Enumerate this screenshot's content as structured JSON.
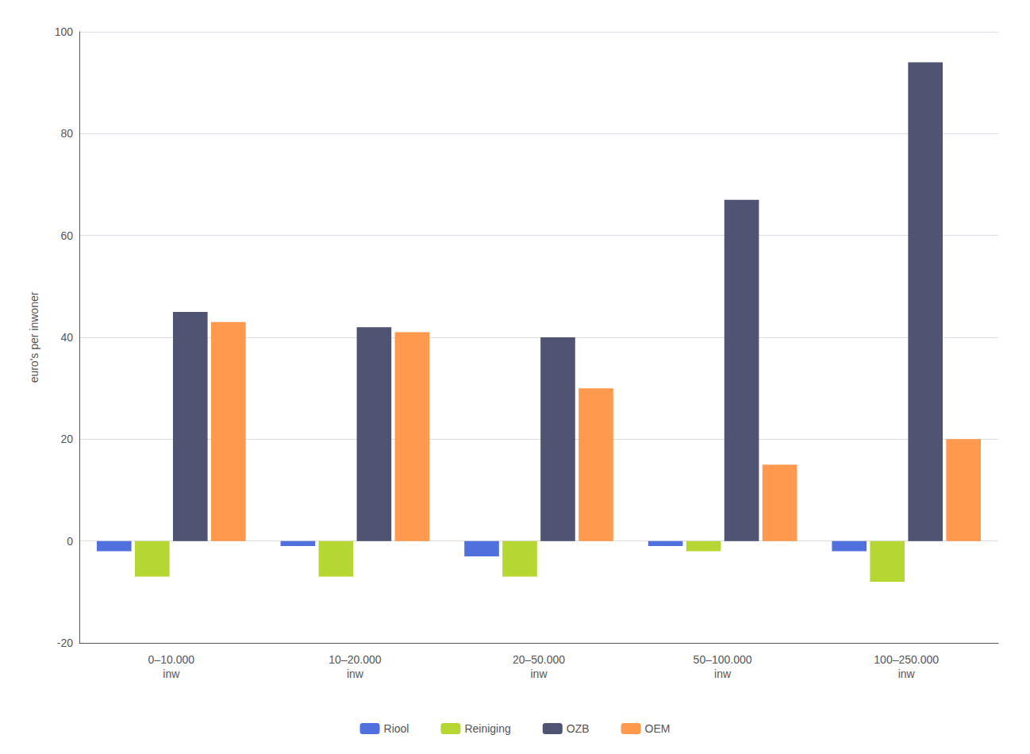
{
  "chart_data": {
    "type": "bar",
    "categories": [
      "0–10.000\ninw",
      "10–20.000\ninw",
      "20–50.000\ninw",
      "50–100.000\ninw",
      "100–250.000\ninw"
    ],
    "series": [
      {
        "name": "Riool",
        "values": [
          -2,
          -1,
          -3,
          -1,
          -2
        ]
      },
      {
        "name": "Reiniging",
        "values": [
          -7,
          -7,
          -7,
          -2,
          -8
        ]
      },
      {
        "name": "OZB",
        "values": [
          45,
          42,
          40,
          67,
          94
        ]
      },
      {
        "name": "OEM",
        "values": [
          43,
          41,
          30,
          15,
          20
        ]
      }
    ],
    "ylabel": "euro's per inwoner",
    "ylim": [
      -20,
      100
    ],
    "yticks": [
      -20,
      0,
      20,
      40,
      60,
      80,
      100
    ],
    "grid": true,
    "legend": "bottom"
  }
}
